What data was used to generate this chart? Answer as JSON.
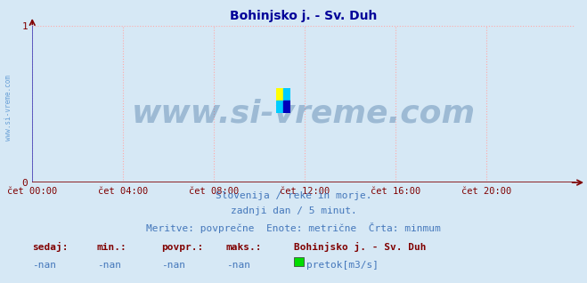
{
  "title": "Bohinjsko j. - Sv. Duh",
  "title_color": "#000099",
  "title_fontsize": 10,
  "bg_color": "#d6e8f5",
  "plot_bg_color": "#d6e8f5",
  "xlim": [
    0,
    287
  ],
  "ylim": [
    0,
    1
  ],
  "yticks": [
    0,
    1
  ],
  "ytick_labels": [
    "0",
    "1"
  ],
  "xtick_positions": [
    0,
    48,
    96,
    144,
    192,
    240
  ],
  "xtick_labels": [
    "čet 00:00",
    "čet 04:00",
    "čet 08:00",
    "čet 12:00",
    "čet 16:00",
    "čet 20:00"
  ],
  "grid_color": "#ffaaaa",
  "grid_linestyle": ":",
  "axis_color": "#800000",
  "yaxis_color": "#4444bb",
  "watermark_text": "www.si-vreme.com",
  "watermark_color": "#336699",
  "watermark_alpha": 0.35,
  "watermark_fontsize": 26,
  "sidebar_text": "www.si-vreme.com",
  "sidebar_color": "#4488cc",
  "subtitle_lines": [
    "Slovenija / reke in morje.",
    "zadnji dan / 5 minut.",
    "Meritve: povprečne  Enote: metrične  Črta: minmum"
  ],
  "subtitle_color": "#4477bb",
  "subtitle_fontsize": 8,
  "footer_labels": [
    "sedaj:",
    "min.:",
    "povpr.:",
    "maks.:"
  ],
  "footer_values": [
    "-nan",
    "-nan",
    "-nan",
    "-nan"
  ],
  "footer_bold_label": "Bohinjsko j. - Sv. Duh",
  "footer_legend_label": "pretok[m3/s]",
  "footer_legend_color": "#00dd00",
  "footer_fontsize": 8,
  "logo_yellow": "#ffff00",
  "logo_cyan": "#00ccff",
  "logo_blue": "#0000bb"
}
